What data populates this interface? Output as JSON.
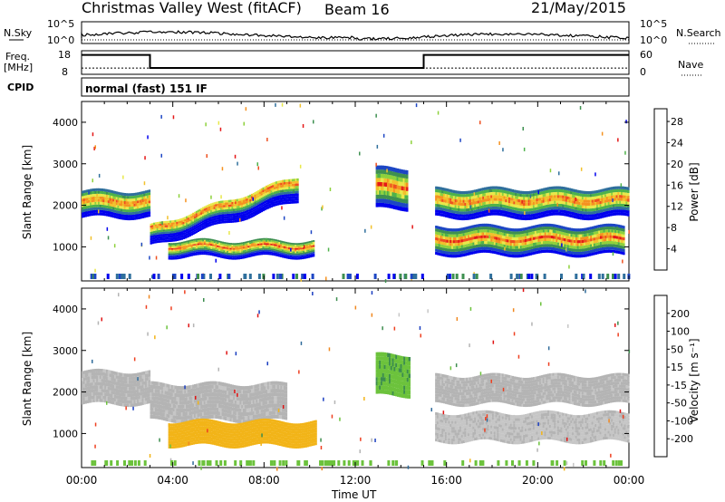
{
  "header": {
    "station": "Christmas Valley West (fitACF)",
    "beam": "Beam 16",
    "date": "21/May/2015",
    "cpid_label": "CPID",
    "cpid_value": "normal (fast) 151 IF"
  },
  "noise_panel": {
    "left_label": "N.Sky",
    "left_ticks": [
      "10^5",
      "10^0"
    ],
    "right_ticks": [
      "10^5",
      "10^0"
    ],
    "right_label": "N.Search"
  },
  "freq_panel": {
    "left_label_top": "Freq.",
    "left_label_bottom": "[MHz]",
    "left_ticks": [
      "18",
      "8"
    ],
    "right_ticks": [
      "60",
      "0"
    ],
    "right_label": "Nave",
    "freq_steps": [
      {
        "t0": 0.0,
        "t1": 3.0,
        "mhz": 16.2
      },
      {
        "t0": 3.0,
        "t1": 15.0,
        "mhz": 10.7
      },
      {
        "t0": 15.0,
        "t1": 24.0,
        "mhz": 16.2
      }
    ],
    "nave_level": 16
  },
  "chart_data": [
    {
      "type": "heatmap",
      "panel": "power",
      "ylabel": "Slant Range [km]",
      "xlabel": "Time UT",
      "x_ticks": [
        "00:00",
        "04:00",
        "08:00",
        "12:00",
        "16:00",
        "20:00",
        "00:00"
      ],
      "xlim_hours": [
        0,
        24
      ],
      "ylim_km": [
        180,
        4500
      ],
      "y_ticks": [
        1000,
        2000,
        3000,
        4000
      ],
      "colorbar": {
        "label": "Power [dB]",
        "ticks": [
          "4",
          "8",
          "12",
          "16",
          "20",
          "24",
          "28"
        ],
        "colors": [
          "#0000ee",
          "#1d46c4",
          "#2f6f9c",
          "#3e9050",
          "#4eb24a",
          "#8ed13c",
          "#e8e84a",
          "#f2c12c",
          "#f59220",
          "#ee5020",
          "#e41818"
        ]
      },
      "echo_bands": [
        {
          "t0": 0.0,
          "t1": 3.0,
          "r0": 1700,
          "r1": 2350,
          "core": 0.55
        },
        {
          "t0": 3.0,
          "t1": 9.5,
          "r0_start": 1000,
          "r0_end": 2100,
          "r1_start": 1500,
          "r1_end": 2700,
          "core": 0.75
        },
        {
          "t0": 3.8,
          "t1": 10.2,
          "r0": 750,
          "r1": 1150,
          "core": 0.6
        },
        {
          "t0": 12.9,
          "t1": 14.3,
          "r0": 1900,
          "r1": 2900,
          "core": 0.5
        },
        {
          "t0": 15.5,
          "t1": 24.0,
          "r0": 1700,
          "r1": 2400,
          "core": 0.55
        },
        {
          "t0": 15.5,
          "t1": 23.8,
          "r0": 800,
          "r1": 1500,
          "core": 0.5
        }
      ]
    },
    {
      "type": "heatmap",
      "panel": "velocity",
      "ylabel": "Slant Range [km]",
      "xlabel": "Time UT",
      "x_ticks": [
        "00:00",
        "04:00",
        "08:00",
        "12:00",
        "16:00",
        "20:00",
        "00:00"
      ],
      "xlim_hours": [
        0,
        24
      ],
      "ylim_km": [
        180,
        4500
      ],
      "y_ticks": [
        1000,
        2000,
        3000,
        4000
      ],
      "colorbar": {
        "label": "Velocity [m s⁻¹]",
        "ticks": [
          "200",
          "100",
          "50",
          "15",
          "-15",
          "-50",
          "-100",
          "-200"
        ],
        "colors": [
          "#1a3ec0",
          "#2e6a9a",
          "#3c8d4e",
          "#6cc23c",
          "#b4b4b4",
          "#c6c6c6",
          "#f2b418",
          "#f08820",
          "#ee4020",
          "#e01414"
        ]
      },
      "echo_bands": [
        {
          "t0": 0.0,
          "t1": 3.0,
          "r0": 1700,
          "r1": 2500,
          "vel": -5
        },
        {
          "t0": 3.0,
          "t1": 9.0,
          "r0": 1300,
          "r1": 2200,
          "vel": -5
        },
        {
          "t0": 3.8,
          "t1": 10.3,
          "r0": 700,
          "r1": 1300,
          "vel": -80
        },
        {
          "t0": 12.9,
          "t1": 14.4,
          "r0": 1900,
          "r1": 2900,
          "vel": 40
        },
        {
          "t0": 15.5,
          "t1": 24.0,
          "r0": 1700,
          "r1": 2400,
          "vel": -5
        },
        {
          "t0": 15.5,
          "t1": 24.0,
          "r0": 800,
          "r1": 1500,
          "vel": -20
        }
      ]
    }
  ]
}
